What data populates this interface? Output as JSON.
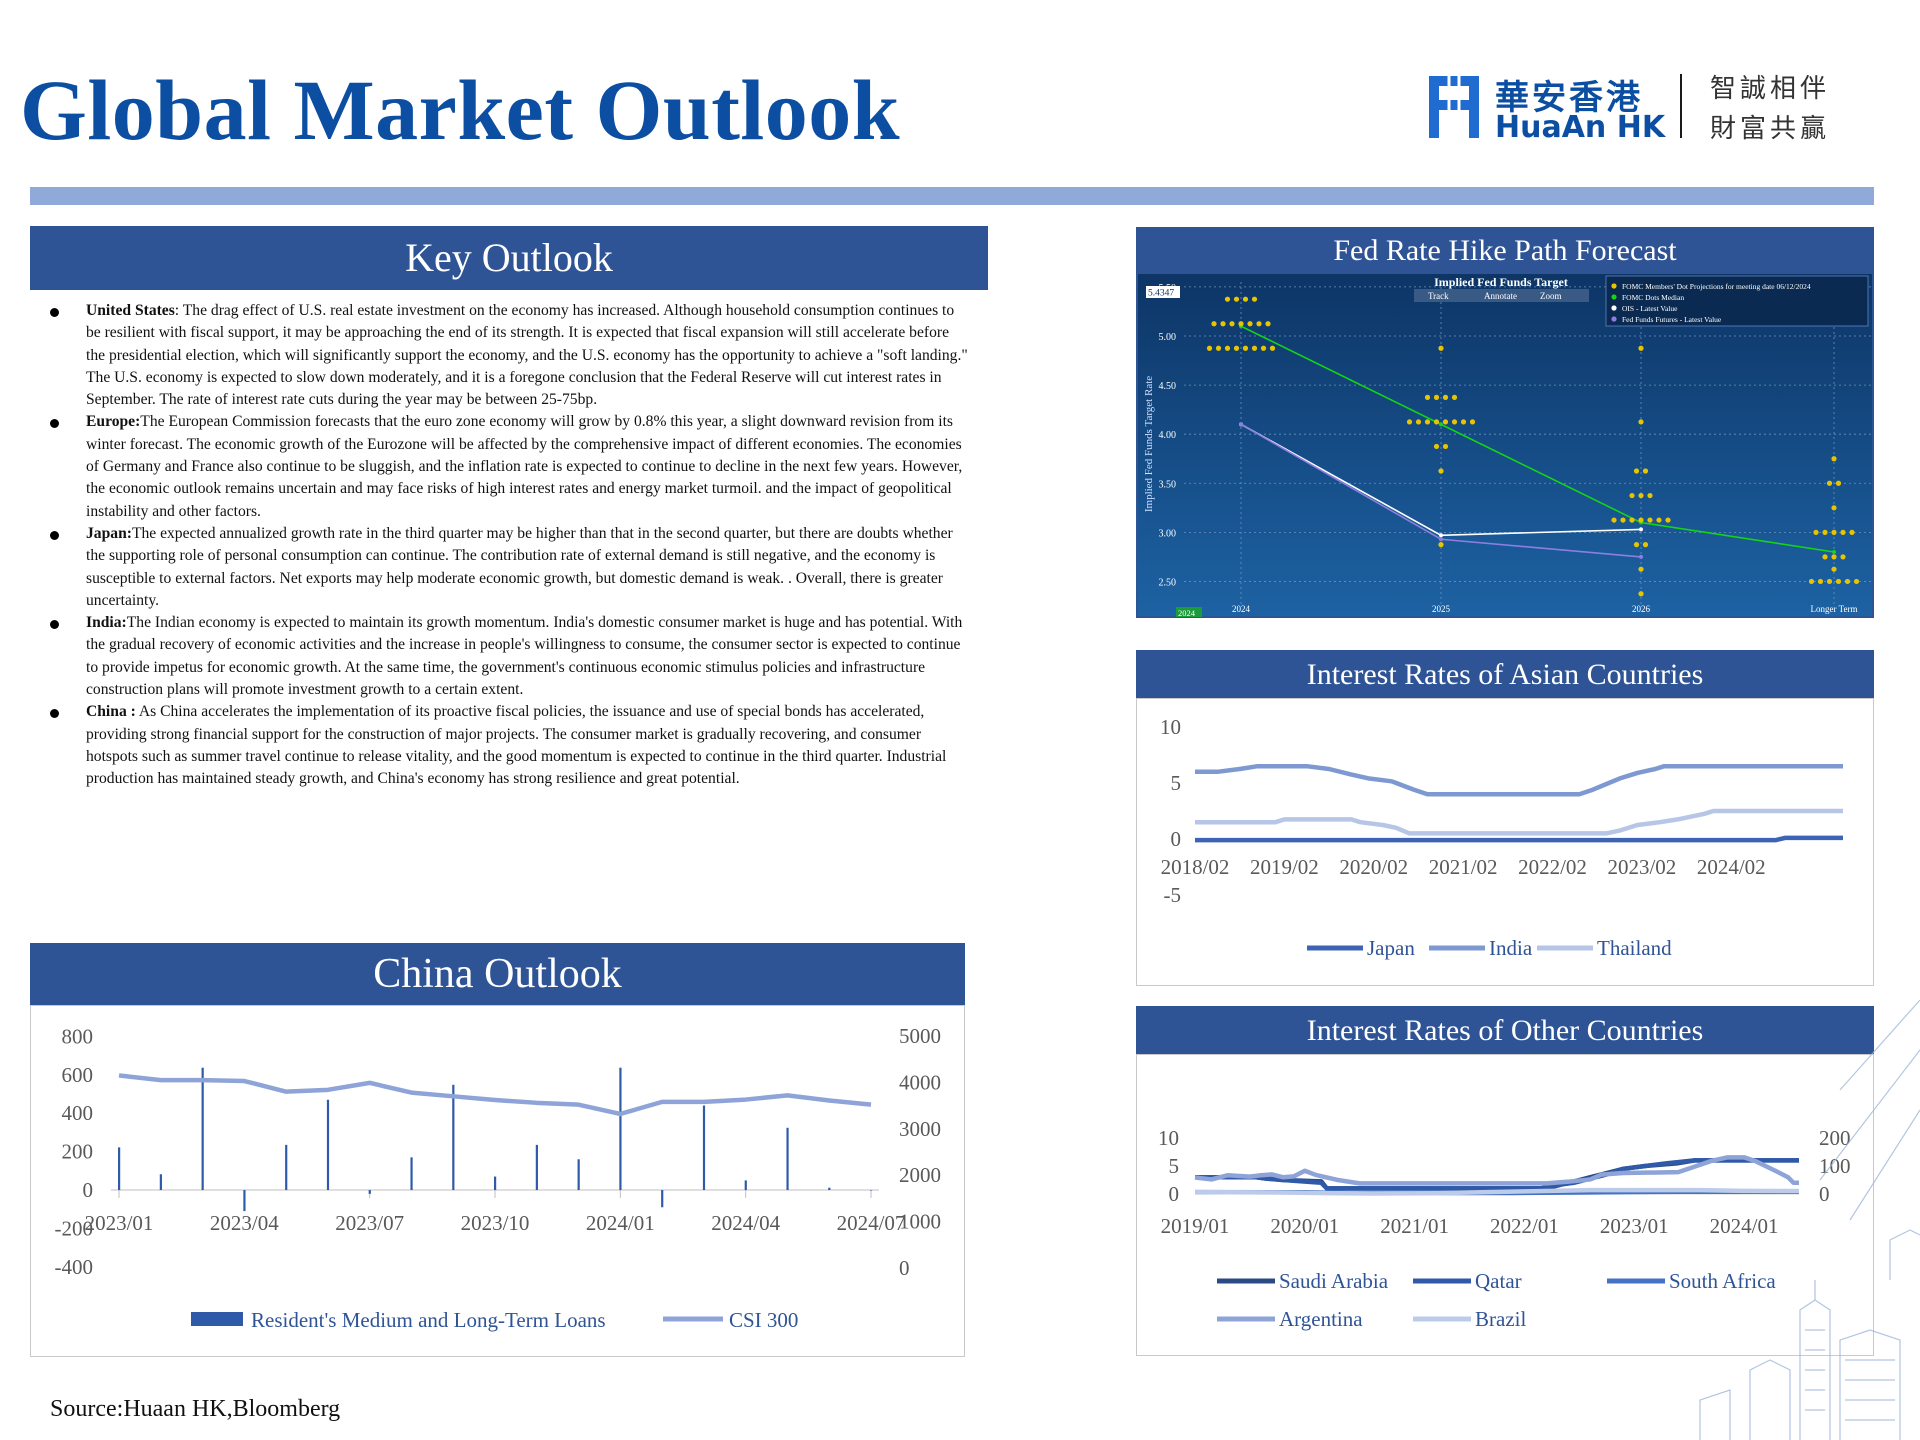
{
  "header": {
    "title": "Global Market Outlook",
    "logo_cn": "華安香港",
    "logo_en": "HuaAn HK",
    "slogan_line1": "智誠相伴",
    "slogan_line2": "財富共贏"
  },
  "key_outlook": {
    "title": "Key Outlook",
    "items": [
      {
        "label": "United States",
        "sep": ": ",
        "text": "The drag effect of U.S. real estate investment on the economy has increased. Although household consumption continues to be resilient with fiscal support, it may be approaching the end of its strength. It is expected that fiscal expansion will still accelerate before the presidential election, which will significantly support the economy, and the U.S. economy has the opportunity to achieve a \"soft landing.\" The U.S. economy is expected to slow down moderately, and it is a foregone conclusion that the Federal Reserve will cut interest rates in September. The rate of interest rate cuts during the year may be between 25-75bp."
      },
      {
        "label": "Europe:",
        "sep": "",
        "text": "The European Commission forecasts that the euro zone economy will grow by 0.8% this year, a slight downward revision from its winter forecast. The economic growth of the Eurozone will be affected by the comprehensive impact of different economies. The economies of Germany and France also continue to be sluggish, and the inflation rate is expected to continue to decline in the next few years. However, the economic outlook remains uncertain and may face risks of high interest rates and energy market turmoil. and the impact of geopolitical instability and other factors."
      },
      {
        "label": "Japan:",
        "sep": "",
        "text": "The expected annualized growth rate in the third quarter may be higher than that in the second quarter, but there are doubts whether the supporting role of personal consumption can continue. The contribution rate of external demand is still negative, and the economy is susceptible to external factors. Net exports may help moderate economic growth, but domestic demand is weak. . Overall, there is greater uncertainty."
      },
      {
        "label": "India:",
        "sep": "",
        "text": "The Indian economy is expected to maintain its growth momentum. India's domestic consumer market is huge and has potential. With the gradual recovery of economic activities and the increase in people's willingness to consume, the consumer sector is expected to continue to provide impetus for economic growth. At the same time, the government's continuous economic stimulus policies and infrastructure construction plans will promote investment growth to a certain extent."
      },
      {
        "label": "China :",
        "sep": " ",
        "text": "As China accelerates the implementation of its proactive fiscal policies, the issuance and use of special bonds has accelerated, providing strong financial support for the construction of major projects. The consumer market is gradually recovering, and consumer hotspots such as summer travel continue to release vitality, and the good momentum is expected to continue in the third quarter. Industrial production has maintained steady growth, and China's economy has strong resilience and great potential."
      }
    ]
  },
  "fed_panel": {
    "title": "Fed Rate Hike Path Forecast",
    "screenshot_title": "Implied Fed Funds Target",
    "current_value": "5.4347",
    "toolbar": [
      "Track",
      "Annotate",
      "Zoom"
    ],
    "ylabel": "Implied Fed Funds Target Rate",
    "legend": [
      "FOMC Members' Dot Projections for meeting date 06/12/2024",
      "FOMC Dots Median",
      "OIS - Latest Value",
      "Fed Funds Futures - Latest Value"
    ],
    "corner_label": "2024",
    "colors": {
      "bg_top": "#0d3566",
      "bg_bottom": "#1d62a3",
      "dots": "#e8c400",
      "median": "#14d414",
      "ois": "#ffffff",
      "futures": "#8c7ee0"
    }
  },
  "china_outlook": {
    "title": "China Outlook"
  },
  "asia_panel": {
    "title": "Interest Rates of Asian Countries"
  },
  "other_panel": {
    "title": "Interest Rates of Other Countries"
  },
  "source": "Source:Huaan HK,Bloomberg",
  "chart_data": [
    {
      "id": "fed",
      "type": "scatter",
      "title": "Implied Fed Funds Target",
      "ylabel": "Implied Fed Funds Target Rate",
      "categories": [
        "2024",
        "2025",
        "2026",
        "Longer Term"
      ],
      "yticks": [
        "2.50",
        "3.00",
        "3.50",
        "4.00",
        "4.50",
        "5.00",
        "5.50"
      ],
      "ylim": [
        2.25,
        5.55
      ],
      "dots": [
        {
          "x": "2024",
          "values": [
            5.375,
            5.375,
            5.375,
            5.375,
            5.125,
            5.125,
            5.125,
            5.125,
            5.125,
            5.125,
            5.125,
            4.875,
            4.875,
            4.875,
            4.875,
            4.875,
            4.875,
            4.875,
            4.875
          ]
        },
        {
          "x": "2025",
          "values": [
            4.875,
            4.375,
            4.375,
            4.375,
            4.375,
            4.125,
            4.125,
            4.125,
            4.125,
            4.125,
            4.125,
            4.125,
            4.125,
            3.875,
            3.875,
            3.625,
            2.875
          ]
        },
        {
          "x": "2026",
          "values": [
            4.875,
            4.125,
            3.625,
            3.625,
            3.375,
            3.375,
            3.375,
            3.125,
            3.125,
            3.125,
            3.125,
            3.125,
            3.125,
            3.125,
            2.875,
            2.875,
            2.625,
            2.375
          ]
        },
        {
          "x": "Longer Term",
          "values": [
            3.75,
            3.5,
            3.5,
            3.25,
            3.0,
            3.0,
            3.0,
            3.0,
            3.0,
            2.75,
            2.75,
            2.75,
            2.625,
            2.5,
            2.5,
            2.5,
            2.5,
            2.5,
            2.5
          ]
        }
      ],
      "series": [
        {
          "name": "FOMC Dots Median",
          "x": [
            2024,
            2025,
            2026,
            2027
          ],
          "values": [
            5.1,
            4.1,
            3.1,
            2.8
          ]
        },
        {
          "name": "OIS - Latest Value",
          "x": [
            2024,
            2025,
            2026
          ],
          "values": [
            4.1,
            2.97,
            3.03
          ]
        },
        {
          "name": "Fed Funds Futures - Latest Value",
          "x": [
            2024,
            2025,
            2026
          ],
          "values": [
            4.1,
            2.93,
            2.75
          ]
        }
      ]
    },
    {
      "id": "china",
      "type": "bar+line",
      "xticks": [
        "2023/01",
        "2023/04",
        "2023/07",
        "2023/10",
        "2024/01",
        "2024/04",
        "2024/07"
      ],
      "y_left_ticks": [
        800,
        600,
        400,
        200,
        0,
        -200,
        -400
      ],
      "y_right_ticks": [
        5000,
        4000,
        3000,
        2000,
        1000,
        0
      ],
      "ylim_left": [
        -400,
        800
      ],
      "ylim_right": [
        0,
        5000
      ],
      "legend": [
        "Resident's Medium and Long-Term Loans",
        "CSI 300"
      ],
      "series": [
        {
          "name": "Resident's Medium and Long-Term Loans",
          "x": [
            "2023/01",
            "2023/02",
            "2023/03",
            "2023/04",
            "2023/05",
            "2023/06",
            "2023/07",
            "2023/08",
            "2023/09",
            "2023/10",
            "2023/11",
            "2023/12",
            "2024/01",
            "2024/02",
            "2024/03",
            "2024/04",
            "2024/05",
            "2024/06",
            "2024/07"
          ],
          "values": [
            222,
            82,
            637,
            -110,
            235,
            470,
            -20,
            170,
            548,
            70,
            235,
            160,
            637,
            -90,
            440,
            50,
            324,
            12,
            0
          ]
        },
        {
          "name": "CSI 300",
          "x": [
            "2023/01",
            "2023/02",
            "2023/03",
            "2023/04",
            "2023/05",
            "2023/06",
            "2023/07",
            "2023/08",
            "2023/09",
            "2023/10",
            "2023/11",
            "2023/12",
            "2024/01",
            "2024/02",
            "2024/03",
            "2024/04",
            "2024/05",
            "2024/06",
            "2024/07"
          ],
          "values": [
            4150,
            4050,
            4050,
            4030,
            3800,
            3840,
            3990,
            3780,
            3700,
            3620,
            3560,
            3520,
            3320,
            3580,
            3580,
            3630,
            3720,
            3610,
            3520
          ]
        }
      ]
    },
    {
      "id": "asia",
      "type": "line",
      "xticks": [
        "2018/02",
        "2019/02",
        "2020/02",
        "2021/02",
        "2022/02",
        "2023/02",
        "2024/02"
      ],
      "yticks": [
        10,
        5,
        0,
        -5
      ],
      "ylim": [
        -5,
        10
      ],
      "legend": [
        "Japan",
        "India",
        "Thailand"
      ],
      "series": [
        {
          "name": "Japan",
          "points": [
            [
              2018.0,
              -0.1
            ],
            [
              2024.5,
              -0.1
            ],
            [
              2024.6,
              0.1
            ],
            [
              2025.25,
              0.1
            ]
          ]
        },
        {
          "name": "India",
          "points": [
            [
              2018.0,
              6.0
            ],
            [
              2018.25,
              6.0
            ],
            [
              2018.5,
              6.25
            ],
            [
              2018.7,
              6.5
            ],
            [
              2019.25,
              6.5
            ],
            [
              2019.5,
              6.25
            ],
            [
              2019.75,
              5.75
            ],
            [
              2019.95,
              5.4
            ],
            [
              2020.2,
              5.15
            ],
            [
              2020.45,
              4.4
            ],
            [
              2020.6,
              4.0
            ],
            [
              2022.3,
              4.0
            ],
            [
              2022.45,
              4.4
            ],
            [
              2022.6,
              4.9
            ],
            [
              2022.75,
              5.4
            ],
            [
              2022.95,
              5.9
            ],
            [
              2023.15,
              6.25
            ],
            [
              2023.25,
              6.5
            ],
            [
              2025.25,
              6.5
            ]
          ]
        },
        {
          "name": "Thailand",
          "points": [
            [
              2018.0,
              1.5
            ],
            [
              2018.9,
              1.5
            ],
            [
              2019.0,
              1.75
            ],
            [
              2019.75,
              1.75
            ],
            [
              2019.85,
              1.5
            ],
            [
              2020.1,
              1.25
            ],
            [
              2020.25,
              1.0
            ],
            [
              2020.4,
              0.5
            ],
            [
              2022.6,
              0.5
            ],
            [
              2022.75,
              0.75
            ],
            [
              2022.95,
              1.25
            ],
            [
              2023.2,
              1.5
            ],
            [
              2023.4,
              1.75
            ],
            [
              2023.7,
              2.25
            ],
            [
              2023.8,
              2.5
            ],
            [
              2025.25,
              2.5
            ]
          ]
        }
      ]
    },
    {
      "id": "other",
      "type": "line",
      "xticks": [
        "2019/01",
        "2020/01",
        "2021/01",
        "2022/01",
        "2023/01",
        "2024/01"
      ],
      "y_left_ticks": [
        10,
        5,
        0
      ],
      "y_right_ticks": [
        200,
        100,
        0
      ],
      "ylim_left": [
        0,
        10
      ],
      "ylim_right": [
        0,
        200
      ],
      "legend": [
        "Saudi Arabia",
        "Qatar",
        "South Africa",
        "Argentina",
        "Brazil"
      ],
      "series": [
        {
          "name": "Saudi Arabia",
          "points": [
            [
              2019.0,
              3.0
            ],
            [
              2019.55,
              3.0
            ],
            [
              2019.65,
              2.75
            ],
            [
              2019.8,
              2.5
            ],
            [
              2020.15,
              2.25
            ],
            [
              2020.2,
              1.0
            ],
            [
              2022.15,
              1.0
            ],
            [
              2022.25,
              1.25
            ],
            [
              2022.35,
              1.75
            ],
            [
              2022.5,
              2.5
            ],
            [
              2022.6,
              3.0
            ],
            [
              2022.75,
              3.75
            ],
            [
              2022.9,
              4.5
            ],
            [
              2023.1,
              5.0
            ],
            [
              2023.4,
              5.5
            ],
            [
              2023.55,
              6.0
            ],
            [
              2024.5,
              6.0
            ]
          ]
        },
        {
          "name": "Qatar",
          "points": [
            [
              2019.0,
              3.0
            ],
            [
              2019.55,
              3.0
            ],
            [
              2019.65,
              2.75
            ],
            [
              2019.8,
              2.5
            ],
            [
              2020.15,
              2.0
            ],
            [
              2020.2,
              1.0
            ],
            [
              2022.15,
              1.0
            ],
            [
              2022.25,
              1.5
            ],
            [
              2022.45,
              2.0
            ],
            [
              2022.6,
              2.75
            ],
            [
              2022.75,
              3.5
            ],
            [
              2022.9,
              4.5
            ],
            [
              2023.1,
              5.0
            ],
            [
              2023.3,
              5.5
            ],
            [
              2023.55,
              6.0
            ],
            [
              2024.5,
              6.0
            ]
          ]
        },
        {
          "name": "South Africa",
          "points": [
            [
              2019.0,
              6.75
            ],
            [
              2020.0,
              6.25
            ],
            [
              2020.4,
              3.5
            ],
            [
              2021.9,
              3.75
            ],
            [
              2022.5,
              5.5
            ],
            [
              2023.0,
              7.25
            ],
            [
              2023.4,
              8.25
            ],
            [
              2024.5,
              8.25
            ]
          ]
        },
        {
          "name": "Argentina",
          "points": [
            [
              2019.0,
              59
            ],
            [
              2019.15,
              52
            ],
            [
              2019.3,
              67
            ],
            [
              2019.5,
              62
            ],
            [
              2019.6,
              67
            ],
            [
              2019.7,
              70
            ],
            [
              2019.8,
              60
            ],
            [
              2019.9,
              63
            ],
            [
              2020.0,
              83
            ],
            [
              2020.1,
              68
            ],
            [
              2020.3,
              50
            ],
            [
              2020.5,
              38
            ],
            [
              2022.2,
              38
            ],
            [
              2022.4,
              44
            ],
            [
              2022.6,
              52
            ],
            [
              2022.7,
              69
            ],
            [
              2022.9,
              75
            ],
            [
              2023.4,
              78
            ],
            [
              2023.5,
              91
            ],
            [
              2023.7,
              118
            ],
            [
              2023.85,
              131
            ],
            [
              2024.0,
              131
            ],
            [
              2024.1,
              118
            ],
            [
              2024.3,
              80
            ],
            [
              2024.4,
              60
            ],
            [
              2024.45,
              40
            ],
            [
              2024.5,
              40
            ]
          ]
        },
        {
          "name": "Brazil",
          "points": [
            [
              2019.0,
              6.5
            ],
            [
              2019.6,
              6.0
            ],
            [
              2020.2,
              3.0
            ],
            [
              2020.6,
              2.0
            ],
            [
              2021.2,
              2.75
            ],
            [
              2021.6,
              6.25
            ],
            [
              2022.0,
              9.25
            ],
            [
              2022.6,
              13.75
            ],
            [
              2023.6,
              13.75
            ],
            [
              2024.0,
              11.25
            ],
            [
              2024.5,
              10.5
            ]
          ]
        }
      ]
    }
  ]
}
